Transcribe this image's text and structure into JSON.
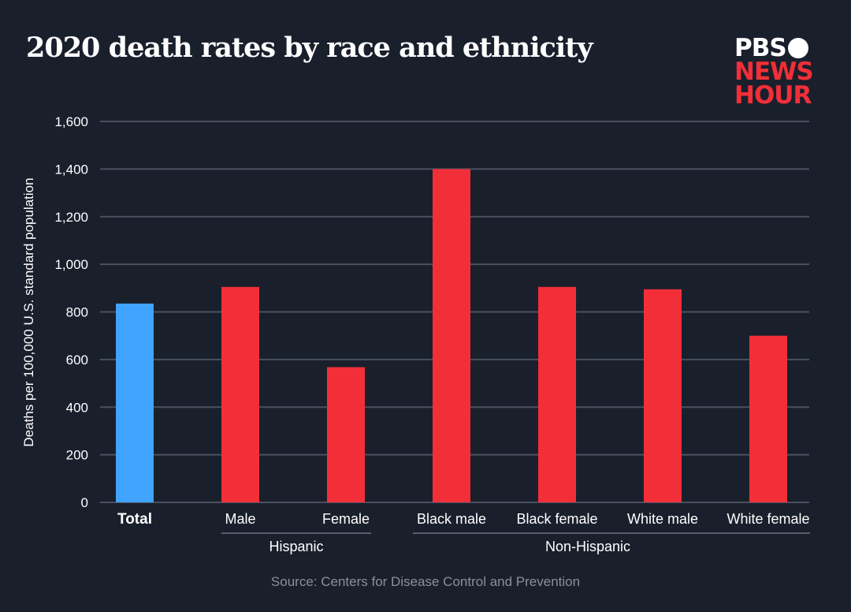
{
  "title": "2020 death rates by race and ethnicity",
  "logo": {
    "line1": "PBS",
    "line2": "NEWS",
    "line3": "HOUR"
  },
  "source": "Source: Centers for Disease Control and Prevention",
  "colors": {
    "background": "#1a1f2c",
    "total": "#3fa3ff",
    "group": "#f22f38",
    "grid": "#4a5060"
  },
  "chart_data": {
    "type": "bar",
    "title": "2020 death rates by race and ethnicity",
    "ylabel": "Deaths per 100,000 U.S. standard population",
    "xlabel": "",
    "ylim": [
      0,
      1600
    ],
    "yticks": [
      "0",
      "200",
      "400",
      "600",
      "800",
      "1,000",
      "1,200",
      "1,400",
      "1,600"
    ],
    "grid": true,
    "categories": [
      "Total",
      "Male",
      "Female",
      "Black male",
      "Black female",
      "White male",
      "White female"
    ],
    "values": [
      835,
      905,
      568,
      1400,
      905,
      895,
      700
    ],
    "groups": [
      {
        "label": "Hispanic",
        "categories": [
          "Male",
          "Female"
        ]
      },
      {
        "label": "Non-Hispanic",
        "categories": [
          "Black male",
          "Black female",
          "White male",
          "White female"
        ]
      }
    ]
  }
}
